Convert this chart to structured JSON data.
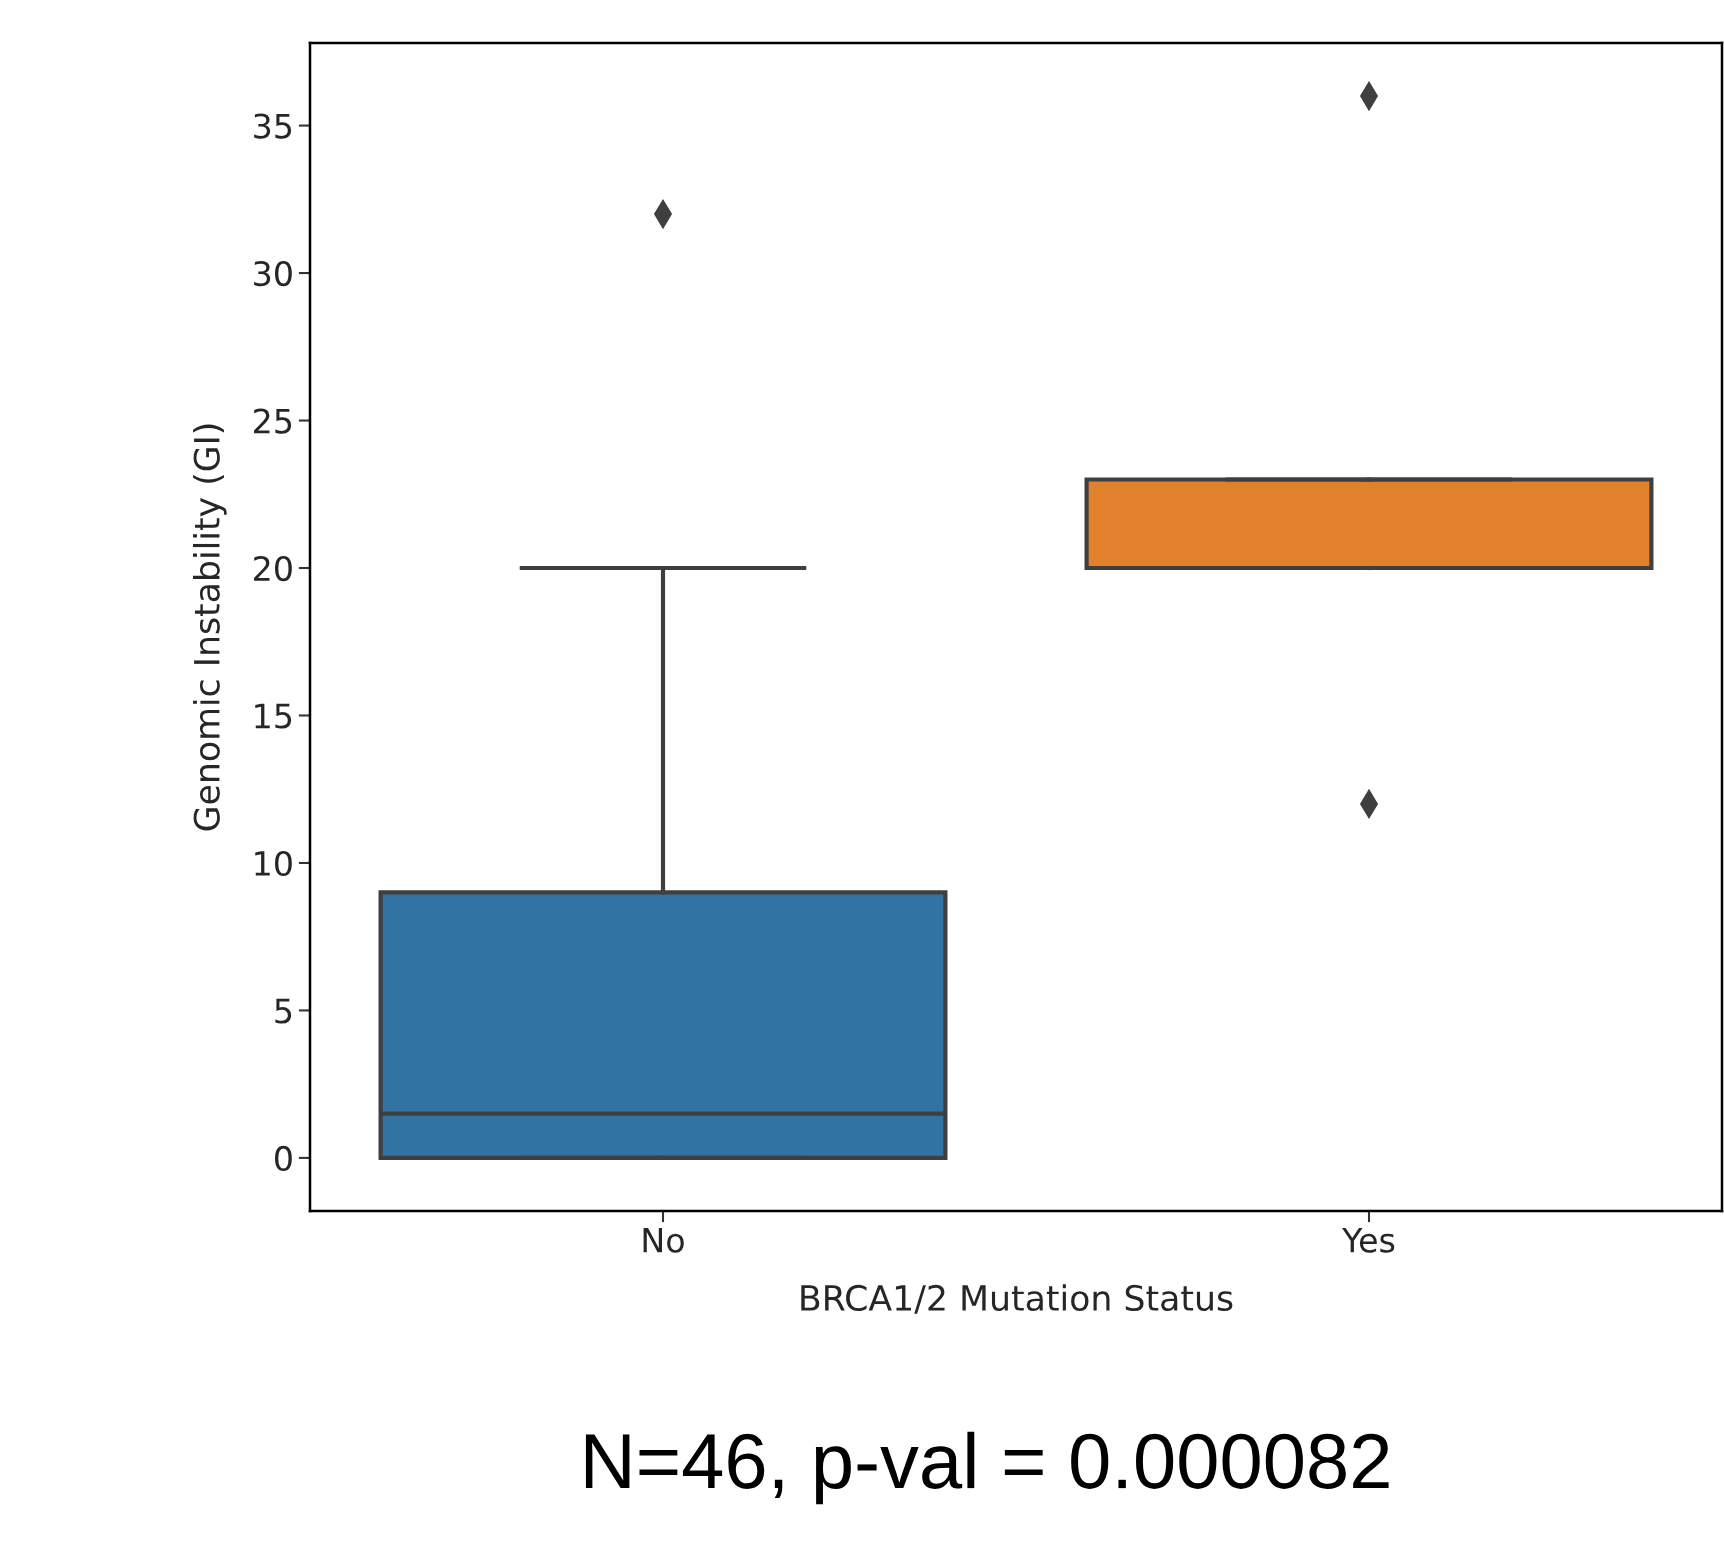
{
  "chart_data": {
    "type": "box",
    "xlabel": "BRCA1/2 Mutation Status",
    "ylabel": "Genomic Instability (GI)",
    "categories": [
      "No",
      "Yes"
    ],
    "boxes": [
      {
        "low": 0,
        "q1": 0,
        "median": 1.5,
        "q3": 9,
        "high": 20,
        "outliers": [
          32
        ]
      },
      {
        "low": 20,
        "q1": 20,
        "median": 20,
        "q3": 23,
        "high": 23,
        "outliers": [
          36,
          12
        ]
      }
    ],
    "colors": [
      "#3274a1",
      "#e1812c"
    ],
    "marker": "diamond",
    "ylim": [
      -1.8,
      37.8
    ],
    "yticks": [
      0,
      5,
      10,
      15,
      20,
      25,
      30,
      35
    ],
    "annotations": [
      "N=46, p-val = 0.000082"
    ]
  }
}
